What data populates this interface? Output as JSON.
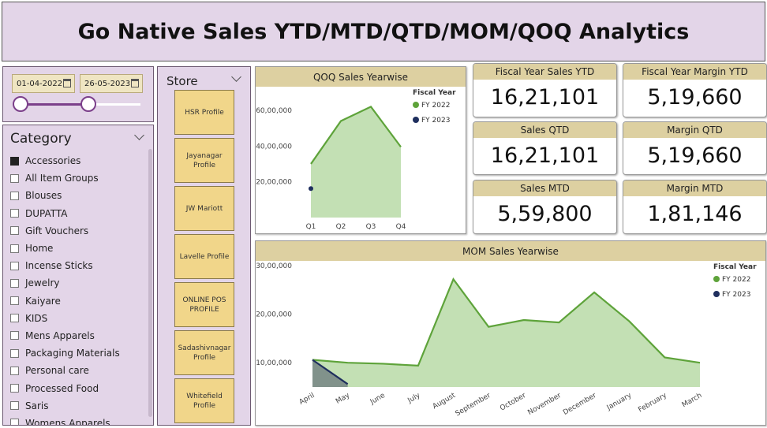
{
  "title": "Go Native Sales YTD/MTD/QTD/MOM/QOQ Analytics",
  "date_slicer": {
    "start": "01-04-2022",
    "end": "26-05-2023",
    "range_fraction": [
      0.0,
      0.57
    ]
  },
  "category": {
    "title": "Category",
    "items": [
      {
        "label": "Accessories",
        "checked": true
      },
      {
        "label": "All Item Groups",
        "checked": false
      },
      {
        "label": "Blouses",
        "checked": false
      },
      {
        "label": "DUPATTA",
        "checked": false
      },
      {
        "label": "Gift Vouchers",
        "checked": false
      },
      {
        "label": "Home",
        "checked": false
      },
      {
        "label": "Incense Sticks",
        "checked": false
      },
      {
        "label": "Jewelry",
        "checked": false
      },
      {
        "label": "Kaiyare",
        "checked": false
      },
      {
        "label": "KIDS",
        "checked": false
      },
      {
        "label": "Mens Apparels",
        "checked": false
      },
      {
        "label": "Packaging Materials",
        "checked": false
      },
      {
        "label": "Personal care",
        "checked": false
      },
      {
        "label": "Processed Food",
        "checked": false
      },
      {
        "label": "Saris",
        "checked": false
      },
      {
        "label": "Womens Apparels",
        "checked": false
      }
    ]
  },
  "store": {
    "title": "Store",
    "items": [
      "HSR Profile",
      "Jayanagar Profile",
      "JW Mariott",
      "Lavelle Profile",
      "ONLINE POS PROFILE",
      "Sadashivnagar Profile",
      "Whitefield Profile"
    ]
  },
  "kpis": {
    "sales_ytd": {
      "label": "Fiscal Year Sales YTD",
      "value": "16,21,101"
    },
    "margin_ytd": {
      "label": "Fiscal Year Margin YTD",
      "value": "5,19,660"
    },
    "sales_qtd": {
      "label": "Sales QTD",
      "value": "16,21,101"
    },
    "margin_qtd": {
      "label": "Margin QTD",
      "value": "5,19,660"
    },
    "sales_mtd": {
      "label": "Sales MTD",
      "value": "5,59,800"
    },
    "margin_mtd": {
      "label": "Margin MTD",
      "value": "1,81,146"
    }
  },
  "colors": {
    "fy2022": "#5ea33a",
    "fy2022_fill": "#c3e0b4",
    "fy2023": "#1f2f5e",
    "header": "#ddd0a1",
    "panel": "#e3d5e8"
  },
  "chart_data": [
    {
      "type": "area",
      "title": "QOQ Sales Yearwise",
      "legend_title": "Fiscal Year",
      "legend_position": "top-right",
      "categories": [
        "Q1",
        "Q2",
        "Q3",
        "Q4"
      ],
      "y_ticks": [
        "20,00,000",
        "40,00,000",
        "60,00,000"
      ],
      "ylim": [
        0,
        6700000
      ],
      "series": [
        {
          "name": "FY 2022",
          "values": [
            3000000,
            5400000,
            6200000,
            3950000
          ]
        },
        {
          "name": "FY 2023",
          "values": [
            1620000,
            null,
            null,
            null
          ]
        }
      ]
    },
    {
      "type": "area",
      "title": "MOM Sales Yearwise",
      "legend_title": "Fiscal Year",
      "legend_position": "top-right",
      "categories": [
        "April",
        "May",
        "June",
        "July",
        "August",
        "September",
        "October",
        "November",
        "December",
        "January",
        "February",
        "March"
      ],
      "y_ticks": [
        "10,00,000",
        "20,00,000",
        "30,00,000"
      ],
      "ylim": [
        500000,
        3000000
      ],
      "series": [
        {
          "name": "FY 2022",
          "values": [
            1060000,
            1000000,
            980000,
            940000,
            2720000,
            1740000,
            1880000,
            1830000,
            2450000,
            1850000,
            1110000,
            1000000
          ]
        },
        {
          "name": "FY 2023",
          "values": [
            1060000,
            560000,
            null,
            null,
            null,
            null,
            null,
            null,
            null,
            null,
            null,
            null
          ]
        }
      ]
    }
  ]
}
